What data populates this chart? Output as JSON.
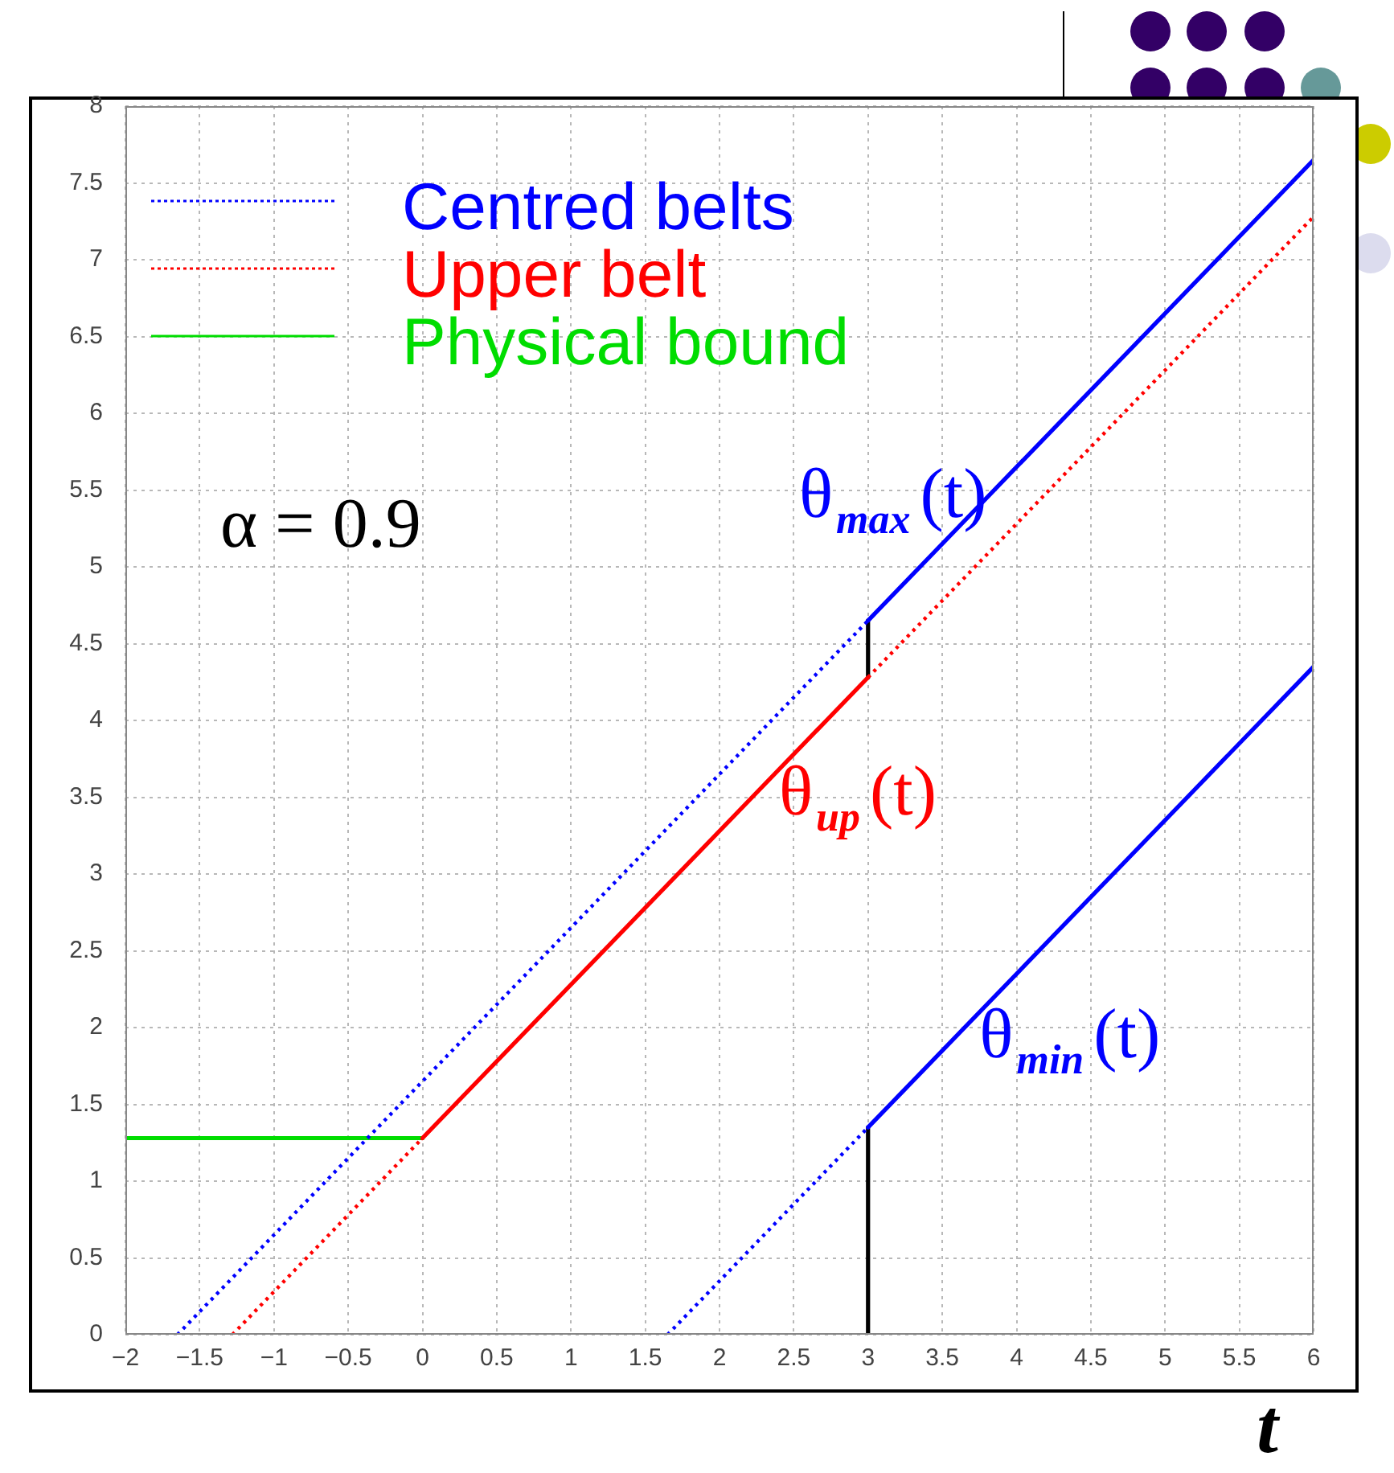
{
  "chart_data": {
    "type": "line",
    "xlabel": "t",
    "annotations": [
      "α = 0.9",
      {
        "text": "θ$_{max}$(t)",
        "x": 3.8,
        "y": 5.45
      },
      {
        "text": "θ$_{up}$(t)",
        "x": 2.4,
        "y": 3.68
      },
      {
        "text": "θ$_{min}$(t)",
        "x": 3.75,
        "y": 2.1
      }
    ],
    "series": [
      {
        "name": "Centred belts",
        "color": "#0000ff",
        "line_style": "dotted",
        "x": [
          -1.65,
          3
        ],
        "values": [
          0,
          4.65
        ]
      },
      {
        "color": "#0000ff",
        "line_style": "solid",
        "x": [
          3,
          6
        ],
        "values": [
          4.65,
          7.65
        ]
      },
      {
        "color": "#0000ff",
        "line_style": "dotted",
        "x": [
          1.65,
          3
        ],
        "values": [
          0,
          1.35
        ]
      },
      {
        "color": "#0000ff",
        "line_style": "solid",
        "x": [
          3,
          6
        ],
        "values": [
          1.35,
          4.35
        ]
      },
      {
        "name": "Upper belt",
        "color": "#ff0000",
        "line_style": "dotted",
        "x": [
          -1.28,
          0
        ],
        "values": [
          0,
          1.28
        ]
      },
      {
        "color": "#ff0000",
        "line_style": "solid",
        "x": [
          0,
          3
        ],
        "values": [
          1.28,
          4.28
        ]
      },
      {
        "color": "#ff0000",
        "line_style": "dotted",
        "x": [
          3,
          6
        ],
        "values": [
          4.28,
          7.28
        ]
      },
      {
        "name": "Physical bound",
        "color": "#00dd00",
        "line_style": "solid",
        "x": [
          -2,
          0
        ],
        "values": [
          1.28,
          1.28
        ]
      },
      {
        "color": "#000000",
        "line_style": "solid",
        "x": [
          3,
          3
        ],
        "values": [
          0,
          1.35
        ]
      },
      {
        "color": "#000000",
        "line_style": "solid",
        "x": [
          3,
          3
        ],
        "values": [
          4.28,
          4.65
        ]
      }
    ],
    "xlim": [
      -2,
      6
    ],
    "xticks": [
      {
        "value": -2,
        "label": "−2"
      },
      {
        "value": -1.5,
        "label": "−1.5"
      },
      {
        "value": -1,
        "label": "−1"
      },
      {
        "value": -0.5,
        "label": "−0.5"
      },
      0,
      0.5,
      1,
      1.5,
      2,
      2.5,
      3,
      3.5,
      4,
      4.5,
      5,
      5.5,
      6
    ],
    "ylim": [
      0,
      8
    ],
    "yticks": [
      0,
      0.5,
      1,
      1.5,
      2,
      2.5,
      3,
      3.5,
      4,
      4.5,
      5,
      5.5,
      6,
      6.5,
      7,
      7.5,
      8
    ],
    "grid": true,
    "legend": "top left"
  }
}
